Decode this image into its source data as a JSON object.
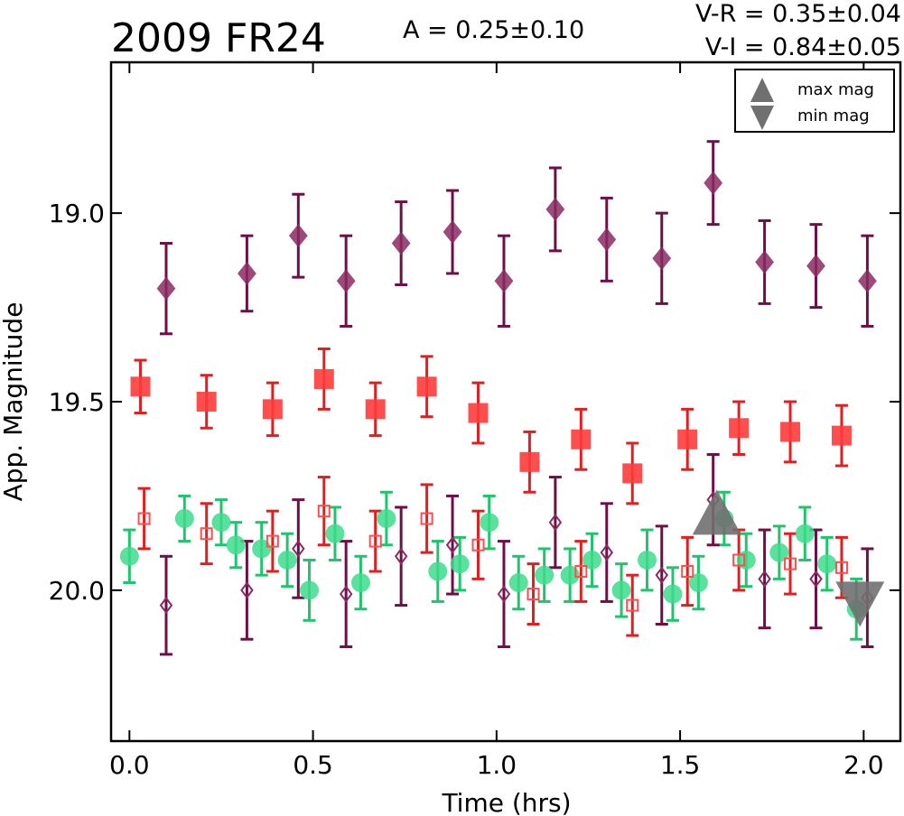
{
  "chart_data": {
    "type": "scatter",
    "title": "2009 FR24",
    "amplitude_label": "A  = 0.25±0.10",
    "color_labels": [
      "V-R = 0.35±0.04",
      "V-I  = 0.84±0.05"
    ],
    "xlabel": "Time (hrs)",
    "ylabel": "App. Magnitude",
    "xlim": [
      -0.05,
      2.1
    ],
    "ylim": [
      20.4,
      18.6
    ],
    "y_inverted": true,
    "xticks": [
      0.0,
      0.5,
      1.0,
      1.5,
      2.0
    ],
    "xtick_labels": [
      "0.0",
      "0.5",
      "1.0",
      "1.5",
      "2.0"
    ],
    "yticks": [
      19.0,
      19.5,
      20.0
    ],
    "ytick_labels": [
      "19.0",
      "19.5",
      "20.0"
    ],
    "grid": false,
    "legend_position": "top-right",
    "legend": [
      {
        "label": "max mag",
        "marker": "triangle-up",
        "color": "#707070"
      },
      {
        "label": "min mag",
        "marker": "triangle-down",
        "color": "#707070"
      }
    ],
    "series": [
      {
        "marker": "diamond-filled",
        "color": "#8a2a62",
        "errcolor": "#6e1046",
        "x": [
          0.1,
          0.32,
          0.46,
          0.59,
          0.74,
          0.88,
          1.02,
          1.16,
          1.3,
          1.45,
          1.59,
          1.73,
          1.87,
          2.01
        ],
        "y": [
          19.2,
          19.16,
          19.06,
          19.18,
          19.08,
          19.05,
          19.18,
          18.99,
          19.07,
          19.12,
          18.92,
          19.13,
          19.14,
          19.18
        ],
        "err": [
          0.12,
          0.1,
          0.11,
          0.12,
          0.11,
          0.11,
          0.12,
          0.11,
          0.11,
          0.12,
          0.11,
          0.11,
          0.11,
          0.12
        ]
      },
      {
        "marker": "square-filled",
        "color": "#ff3b3b",
        "errcolor": "#e02020",
        "x": [
          0.03,
          0.21,
          0.39,
          0.53,
          0.67,
          0.81,
          0.95,
          1.09,
          1.23,
          1.37,
          1.52,
          1.66,
          1.8,
          1.94
        ],
        "y": [
          19.46,
          19.5,
          19.52,
          19.44,
          19.52,
          19.46,
          19.53,
          19.66,
          19.6,
          19.69,
          19.6,
          19.57,
          19.58,
          19.59
        ],
        "err": [
          0.07,
          0.07,
          0.07,
          0.08,
          0.07,
          0.08,
          0.08,
          0.08,
          0.08,
          0.08,
          0.08,
          0.07,
          0.08,
          0.08
        ]
      },
      {
        "marker": "circle-filled",
        "color": "#3ddc8c",
        "errcolor": "#1fc46c",
        "x": [
          0.0,
          0.15,
          0.25,
          0.29,
          0.36,
          0.43,
          0.49,
          0.56,
          0.63,
          0.7,
          0.84,
          0.9,
          0.98,
          1.06,
          1.13,
          1.2,
          1.26,
          1.34,
          1.41,
          1.48,
          1.55,
          1.62,
          1.68,
          1.77,
          1.84,
          1.9,
          1.98
        ],
        "y": [
          19.91,
          19.81,
          19.82,
          19.88,
          19.89,
          19.92,
          20.0,
          19.85,
          19.98,
          19.81,
          19.95,
          19.93,
          19.82,
          19.98,
          19.96,
          19.96,
          19.92,
          20.0,
          19.92,
          20.01,
          19.98,
          19.81,
          19.92,
          19.9,
          19.85,
          19.93,
          20.05
        ],
        "err": [
          0.07,
          0.06,
          0.06,
          0.06,
          0.07,
          0.07,
          0.08,
          0.07,
          0.07,
          0.07,
          0.08,
          0.07,
          0.07,
          0.07,
          0.07,
          0.07,
          0.07,
          0.07,
          0.08,
          0.07,
          0.07,
          0.07,
          0.07,
          0.07,
          0.07,
          0.07,
          0.08
        ]
      },
      {
        "marker": "square-open",
        "color": "#ff4d4d",
        "errcolor": "#e02020",
        "x": [
          0.04,
          0.21,
          0.39,
          0.53,
          0.67,
          0.81,
          0.95,
          1.1,
          1.23,
          1.37,
          1.52,
          1.66,
          1.8,
          1.94
        ],
        "y": [
          19.81,
          19.85,
          19.87,
          19.79,
          19.87,
          19.81,
          19.88,
          20.01,
          19.95,
          20.04,
          19.95,
          19.92,
          19.93,
          19.94
        ],
        "err": [
          0.08,
          0.08,
          0.08,
          0.09,
          0.08,
          0.09,
          0.09,
          0.08,
          0.08,
          0.08,
          0.09,
          0.08,
          0.08,
          0.08
        ]
      },
      {
        "marker": "diamond-open",
        "color": "#8a2a62",
        "errcolor": "#6e1046",
        "x": [
          0.1,
          0.32,
          0.46,
          0.59,
          0.74,
          0.88,
          1.02,
          1.16,
          1.3,
          1.45,
          1.59,
          1.73,
          1.87,
          2.01
        ],
        "y": [
          20.04,
          20.0,
          19.89,
          20.01,
          19.91,
          19.88,
          20.01,
          19.82,
          19.9,
          19.96,
          19.76,
          19.97,
          19.97,
          20.02
        ],
        "err": [
          0.13,
          0.13,
          0.13,
          0.14,
          0.13,
          0.13,
          0.14,
          0.12,
          0.13,
          0.13,
          0.12,
          0.13,
          0.13,
          0.13
        ]
      },
      {
        "marker": "triangle-up",
        "color": "#707070",
        "x": [
          1.6
        ],
        "y": [
          19.8
        ]
      },
      {
        "marker": "triangle-down",
        "color": "#707070",
        "x": [
          1.99
        ],
        "y": [
          20.03
        ]
      }
    ]
  }
}
